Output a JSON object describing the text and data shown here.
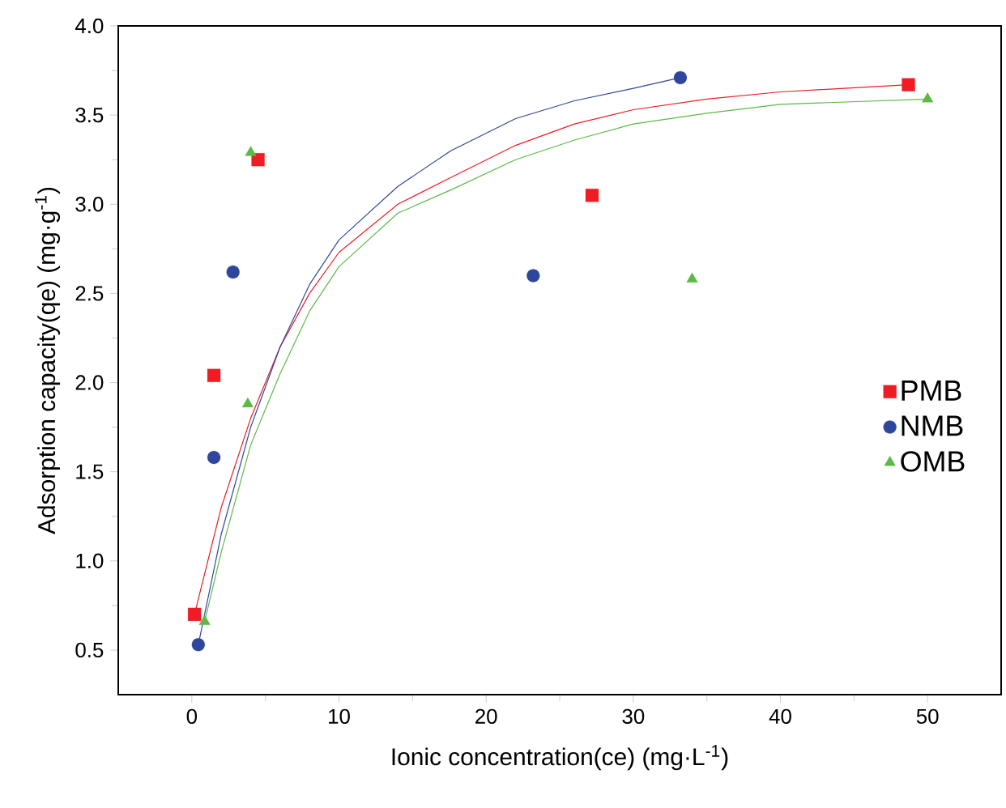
{
  "chart_data": {
    "type": "scatter",
    "xlabel": "Ionic concentration(ce) (mg·L$^{-1}$)",
    "ylabel": "Adsorption capacity(qe) (mg·g$^{-1}$)",
    "xlim": [
      -5,
      55
    ],
    "ylim": [
      0.25,
      4.0
    ],
    "xticks": [
      0,
      {
        "value": 5,
        "label": null
      },
      10,
      {
        "value": 15,
        "label": null
      },
      20,
      {
        "value": 25,
        "label": null
      },
      30,
      {
        "value": 35,
        "label": null
      },
      40,
      {
        "value": 45,
        "label": null
      },
      50
    ],
    "yticks": [
      {
        "value": 0.5,
        "label": "0.5"
      },
      {
        "value": 0.75,
        "label": null
      },
      {
        "value": 1.0,
        "label": "1.0"
      },
      {
        "value": 1.25,
        "label": null
      },
      {
        "value": 1.5,
        "label": "1.5"
      },
      {
        "value": 1.75,
        "label": null
      },
      {
        "value": 2.0,
        "label": "2.0"
      },
      {
        "value": 2.25,
        "label": null
      },
      {
        "value": 2.5,
        "label": "2.5"
      },
      {
        "value": 2.75,
        "label": null
      },
      {
        "value": 3.0,
        "label": "3.0"
      },
      {
        "value": 3.25,
        "label": null
      },
      {
        "value": 3.5,
        "label": "3.5"
      },
      {
        "value": 3.75,
        "label": null
      },
      {
        "value": 4.0,
        "label": "4.0"
      }
    ],
    "grid": false,
    "legend": "right",
    "series": [
      {
        "name": "PMB",
        "color": "#ee1c24",
        "marker": "square",
        "x": [
          0.18,
          1.5,
          4.5,
          27.2,
          48.7
        ],
        "values": [
          0.7,
          2.04,
          3.25,
          3.05,
          3.67
        ]
      },
      {
        "name": "NMB",
        "color": "#2e479c",
        "marker": "circle",
        "x": [
          0.44,
          1.5,
          2.8,
          23.2,
          33.2
        ],
        "values": [
          0.53,
          1.58,
          2.62,
          2.6,
          3.71
        ]
      },
      {
        "name": "OMB",
        "color": "#5cb946",
        "marker": "triangle",
        "x": [
          0.87,
          3.8,
          4.0,
          34.0,
          50.0
        ],
        "values": [
          0.66,
          1.88,
          3.29,
          2.58,
          3.59
        ]
      },
      {
        "type": "line",
        "color": "#ee1c24",
        "marker": "none",
        "line_style": "solid",
        "x": [
          0.18,
          2,
          4,
          6,
          8,
          10,
          14,
          17.6,
          22,
          26,
          30,
          35,
          40,
          48.7
        ],
        "values": [
          0.7,
          1.3,
          1.8,
          2.2,
          2.5,
          2.73,
          3.0,
          3.15,
          3.33,
          3.45,
          3.53,
          3.59,
          3.63,
          3.67
        ]
      },
      {
        "type": "line",
        "color": "#2e479c",
        "marker": "none",
        "line_style": "solid",
        "x": [
          0.44,
          2,
          4,
          6,
          8,
          10,
          14,
          17.6,
          22,
          26,
          30,
          33.2
        ],
        "values": [
          0.53,
          1.15,
          1.75,
          2.2,
          2.55,
          2.8,
          3.1,
          3.3,
          3.48,
          3.58,
          3.65,
          3.71
        ]
      },
      {
        "type": "line",
        "color": "#5cb946",
        "marker": "none",
        "line_style": "solid",
        "x": [
          0.87,
          2,
          4,
          6,
          8,
          10,
          14,
          17.6,
          22,
          26,
          30,
          35,
          40,
          50
        ],
        "values": [
          0.66,
          1.05,
          1.65,
          2.05,
          2.4,
          2.65,
          2.95,
          3.08,
          3.25,
          3.36,
          3.45,
          3.51,
          3.56,
          3.59
        ]
      }
    ]
  }
}
